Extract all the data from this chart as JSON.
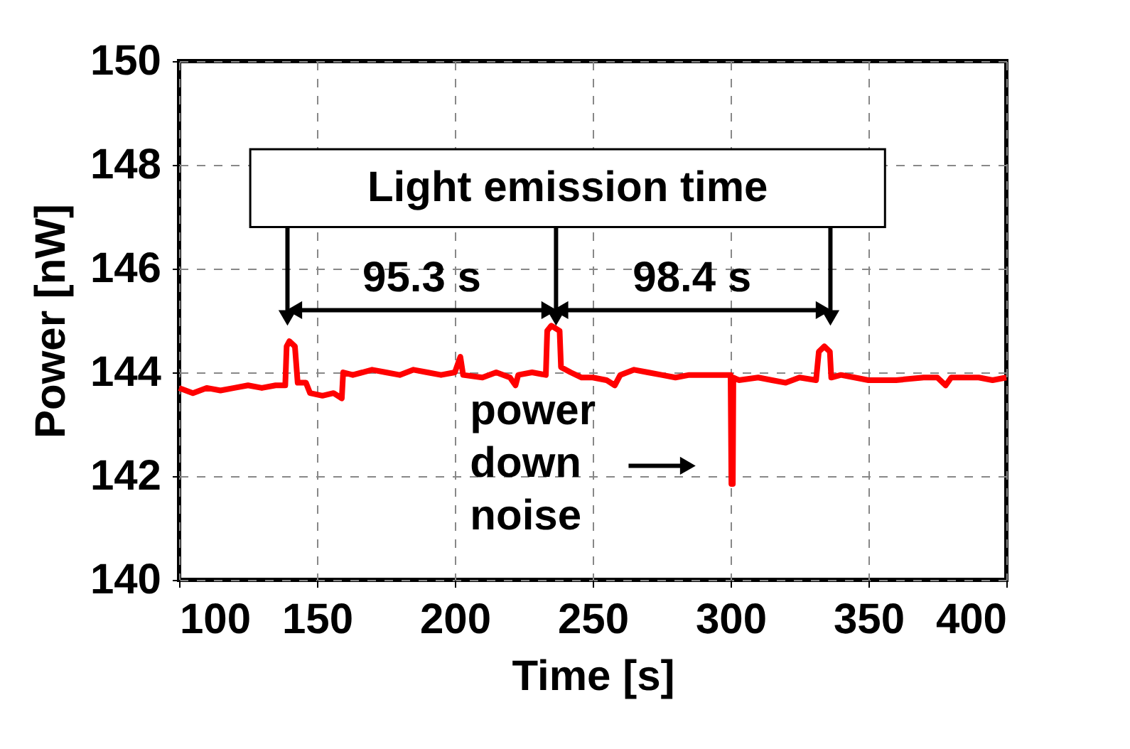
{
  "chart_data": {
    "type": "line",
    "xlabel": "Time [s]",
    "ylabel": "Power [nW]",
    "xlim": [
      100,
      400
    ],
    "xticks": [
      100,
      150,
      200,
      250,
      300,
      350,
      400
    ],
    "ylim": [
      140,
      150
    ],
    "yticks": [
      140,
      142,
      144,
      146,
      148,
      150
    ],
    "grid": true,
    "series": [
      {
        "color": "#ff0000",
        "x": [
          100,
          105,
          110,
          115,
          120,
          125,
          130,
          135,
          138.5,
          139,
          140,
          142,
          143,
          146,
          147.5,
          152,
          156,
          159,
          159.5,
          163,
          170,
          175,
          180,
          185,
          190,
          195,
          200,
          202,
          203,
          210,
          215,
          220,
          222,
          223,
          228,
          233,
          233.5,
          235,
          238,
          238.5,
          242,
          246,
          250,
          255,
          258,
          260,
          265,
          270,
          275,
          280,
          285,
          290,
          295,
          300,
          300.3,
          300.8,
          301,
          303,
          310,
          315,
          320,
          325,
          331,
          332,
          334,
          336,
          336.5,
          340,
          345,
          350,
          360,
          370,
          375,
          378,
          380,
          390,
          395,
          400
        ],
        "values": [
          143.7,
          143.6,
          143.7,
          143.65,
          143.7,
          143.75,
          143.7,
          143.75,
          143.75,
          144.5,
          144.6,
          144.5,
          143.8,
          143.8,
          143.6,
          143.55,
          143.6,
          143.5,
          144.0,
          143.95,
          144.05,
          144.0,
          143.95,
          144.05,
          144.0,
          143.95,
          144.0,
          144.3,
          143.95,
          143.9,
          144.0,
          143.9,
          143.75,
          143.95,
          144.0,
          143.95,
          144.8,
          144.9,
          144.8,
          144.1,
          144.0,
          143.9,
          143.9,
          143.85,
          143.75,
          143.95,
          144.05,
          144.0,
          143.95,
          143.9,
          143.95,
          143.95,
          143.95,
          143.95,
          141.85,
          141.85,
          143.9,
          143.85,
          143.9,
          143.85,
          143.8,
          143.9,
          143.85,
          144.4,
          144.5,
          144.4,
          143.9,
          143.95,
          143.9,
          143.85,
          143.85,
          143.9,
          143.9,
          143.75,
          143.9,
          143.9,
          143.85,
          143.9
        ]
      }
    ],
    "annotations": [
      "Light emission time",
      "95.3 s",
      "98.4 s",
      "power down noise"
    ]
  }
}
